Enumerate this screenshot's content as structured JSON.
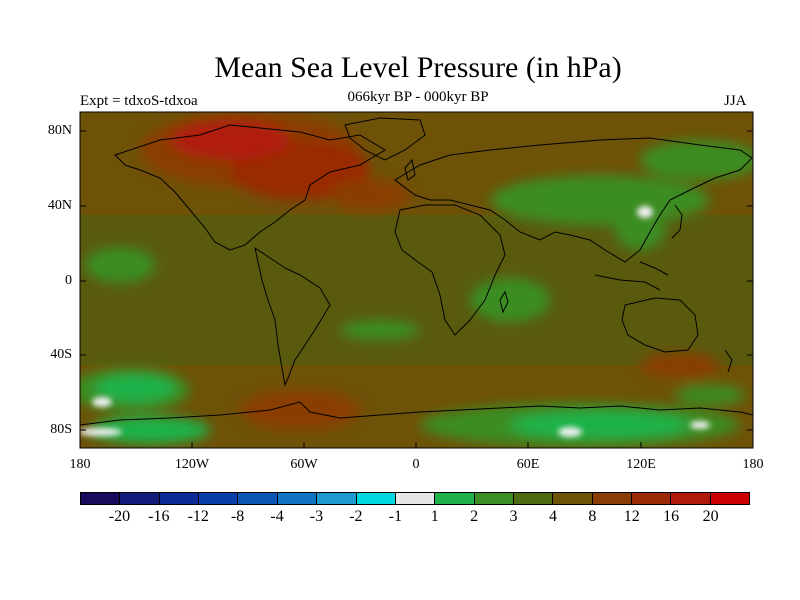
{
  "header": {
    "title": "Mean Sea Level Pressure (in hPa)",
    "experiment": "Expt = tdxoS-tdxoa",
    "period": "066kyr BP - 000kyr BP",
    "season": "JJA"
  },
  "axes": {
    "y_ticks": [
      "80N",
      "40N",
      "0",
      "40S",
      "80S"
    ],
    "x_ticks": [
      "180",
      "120W",
      "60W",
      "0",
      "60E",
      "120E",
      "180"
    ]
  },
  "colorbar": {
    "colors": [
      "#1a0a5e",
      "#121a7a",
      "#0d2a96",
      "#0a3fa8",
      "#0b55b4",
      "#1273c2",
      "#1d9bd0",
      "#00d8e0",
      "#e6e6e6",
      "#1fb24a",
      "#3b8d24",
      "#4e6b12",
      "#6e5208",
      "#8a3d06",
      "#9a2a06",
      "#b01a0a",
      "#cc0000"
    ],
    "labels": [
      "-20",
      "-16",
      "-12",
      "-8",
      "-4",
      "-3",
      "-2",
      "-1",
      "1",
      "2",
      "3",
      "4",
      "8",
      "12",
      "16",
      "20"
    ]
  },
  "map_colors": {
    "land_outline": "#000000",
    "background_level": "#5a5a0e",
    "high_positive": "#8a3d06",
    "very_high": "#a8280a",
    "near_zero": "#3b8d24",
    "low": "#1fb24a",
    "minimal": "#f0f0f0"
  }
}
